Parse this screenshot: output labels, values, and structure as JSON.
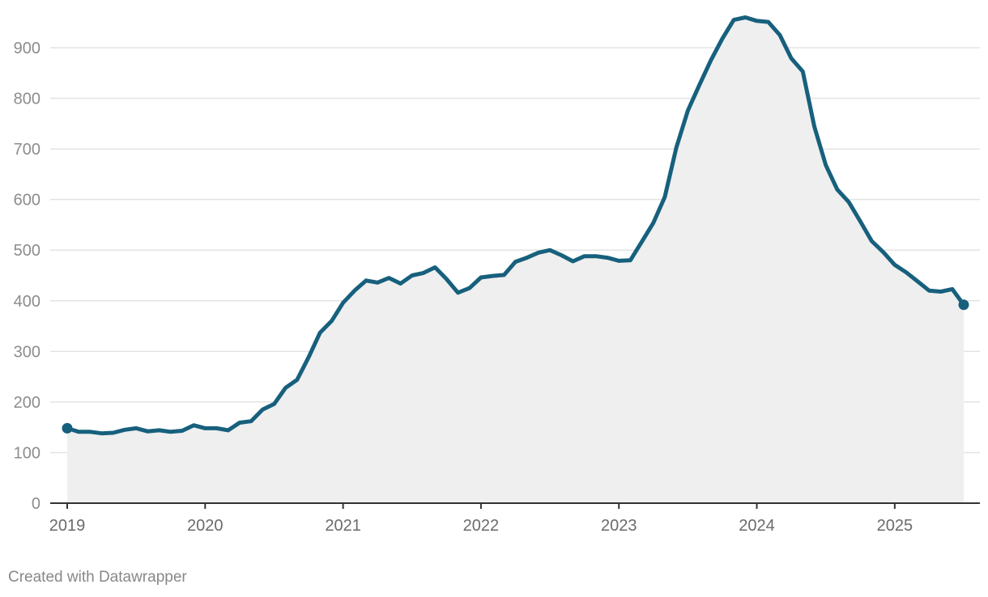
{
  "chart_data": {
    "type": "area",
    "title": "",
    "xlabel": "",
    "ylabel": "",
    "ylim": [
      0,
      960
    ],
    "xlim": [
      2019.0,
      2025.5
    ],
    "grid": true,
    "y_ticks": [
      0,
      100,
      200,
      300,
      400,
      500,
      600,
      700,
      800,
      900
    ],
    "x_ticks": [
      2019,
      2020,
      2021,
      2022,
      2023,
      2024,
      2025
    ],
    "y_tick_labels": [
      "0",
      "100",
      "200",
      "300",
      "400",
      "500",
      "600",
      "700",
      "800",
      "900"
    ],
    "x_tick_labels": [
      "2019",
      "2020",
      "2021",
      "2022",
      "2023",
      "2024",
      "2025"
    ],
    "series": [
      {
        "x": [
          2019.0,
          2019.083,
          2019.167,
          2019.25,
          2019.333,
          2019.417,
          2019.5,
          2019.583,
          2019.667,
          2019.75,
          2019.833,
          2019.917,
          2020.0,
          2020.083,
          2020.167,
          2020.25,
          2020.333,
          2020.417,
          2020.5,
          2020.583,
          2020.667,
          2020.75,
          2020.833,
          2020.917,
          2021.0,
          2021.083,
          2021.167,
          2021.25,
          2021.333,
          2021.417,
          2021.5,
          2021.583,
          2021.667,
          2021.75,
          2021.833,
          2021.917,
          2022.0,
          2022.083,
          2022.167,
          2022.25,
          2022.333,
          2022.417,
          2022.5,
          2022.583,
          2022.667,
          2022.75,
          2022.833,
          2022.917,
          2023.0,
          2023.083,
          2023.167,
          2023.25,
          2023.333,
          2023.417,
          2023.5,
          2023.583,
          2023.667,
          2023.75,
          2023.833,
          2023.917,
          2024.0,
          2024.083,
          2024.167,
          2024.25,
          2024.333,
          2024.417,
          2024.5,
          2024.583,
          2024.667,
          2024.75,
          2024.833,
          2024.917,
          2025.0,
          2025.083,
          2025.167,
          2025.25,
          2025.333,
          2025.417,
          2025.5
        ],
        "values": [
          148,
          141,
          141,
          138,
          139,
          145,
          148,
          142,
          144,
          141,
          143,
          154,
          148,
          148,
          144,
          159,
          162,
          185,
          196,
          228,
          244,
          288,
          337,
          360,
          396,
          420,
          440,
          436,
          445,
          434,
          450,
          455,
          466,
          443,
          416,
          425,
          446,
          449,
          451,
          477,
          485,
          495,
          500,
          490,
          478,
          488,
          488,
          485,
          479,
          480,
          517,
          554,
          605,
          703,
          776,
          826,
          875,
          918,
          955,
          960,
          953,
          951,
          925,
          879,
          853,
          744,
          668,
          620,
          595,
          557,
          518,
          496,
          471,
          456,
          438,
          420,
          418,
          423,
          392
        ]
      }
    ]
  },
  "colors": {
    "line": "#17607d",
    "area": "#efefef",
    "grid": "#e3e3e3",
    "axis": "#333333",
    "tick_text": "#8c8c8c",
    "x_tick_text": "#6b6b6b",
    "credit_text": "#888888"
  },
  "footer": {
    "credit": "Created with Datawrapper"
  }
}
